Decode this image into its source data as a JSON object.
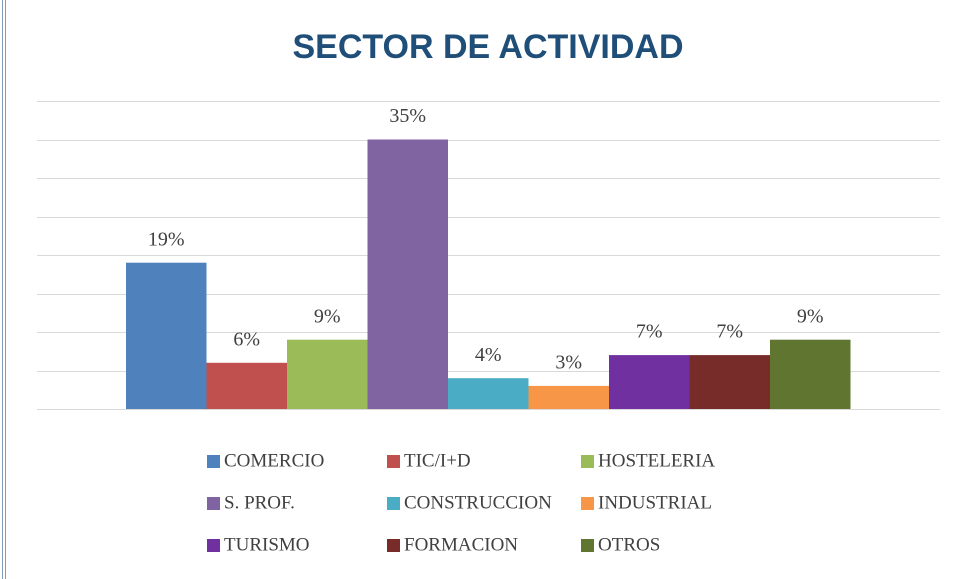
{
  "chart_data": {
    "type": "bar",
    "title": "SECTOR DE ACTIVIDAD",
    "categories": [
      null
    ],
    "series": [
      {
        "name": "COMERCIO",
        "color": "#4f81bd",
        "values": [
          19
        ],
        "value_labels": [
          "19%"
        ]
      },
      {
        "name": "TIC/I+D",
        "color": "#c0504d",
        "values": [
          6
        ],
        "value_labels": [
          "6%"
        ]
      },
      {
        "name": "HOSTELERIA",
        "color": "#9bbb59",
        "values": [
          9
        ],
        "value_labels": [
          "9%"
        ]
      },
      {
        "name": "S. PROF.",
        "color": "#8064a2",
        "values": [
          35
        ],
        "value_labels": [
          "35%"
        ]
      },
      {
        "name": "CONSTRUCCION",
        "color": "#4bacc6",
        "values": [
          4
        ],
        "value_labels": [
          "4%"
        ]
      },
      {
        "name": "INDUSTRIAL",
        "color": "#f79646",
        "values": [
          3
        ],
        "value_labels": [
          "3%"
        ]
      },
      {
        "name": "TURISMO",
        "color": "#7030a0",
        "values": [
          7
        ],
        "value_labels": [
          "7%"
        ]
      },
      {
        "name": "FORMACION",
        "color": "#772c2a",
        "values": [
          7
        ],
        "value_labels": [
          "7%"
        ]
      },
      {
        "name": "OTROS",
        "color": "#5f7530",
        "values": [
          9
        ],
        "value_labels": [
          "9%"
        ]
      }
    ],
    "ylim": [
      0,
      40
    ],
    "yticks": [
      0,
      5,
      10,
      15,
      20,
      25,
      30,
      35,
      40
    ],
    "grid": true,
    "legend": "bottom"
  }
}
